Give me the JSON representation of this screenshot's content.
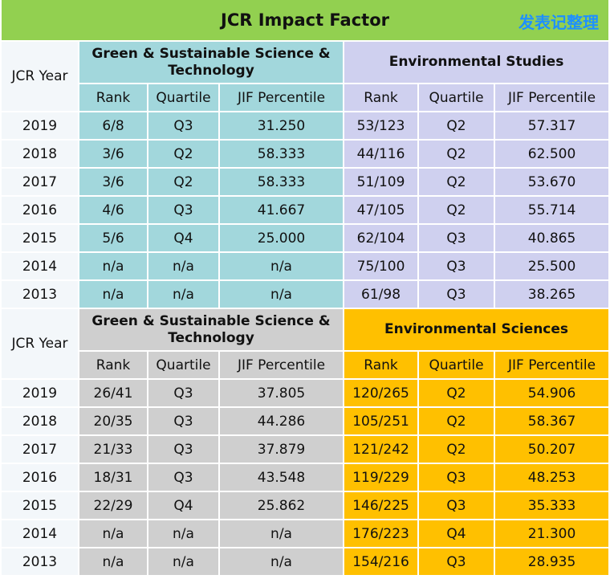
{
  "title": "JCR Impact Factor",
  "watermark": "发表记整理",
  "colors": {
    "title_bg": "#92d050",
    "teal": "#a2d7dc",
    "lavender": "#cfd0ef",
    "grey": "#cfcfcf",
    "gold": "#ffc000",
    "watermark": "#1e90ff"
  },
  "year_label": "JCR Year",
  "sub_headers": [
    "Rank",
    "Quartile",
    "JIF Percentile"
  ],
  "blocks": [
    {
      "left": {
        "name": "Green & Sustainable Science & Technology",
        "color": "teal"
      },
      "right": {
        "name": "Environmental Studies",
        "color": "lav"
      },
      "rows": [
        [
          "2019",
          "6/8",
          "Q3",
          "31.250",
          "53/123",
          "Q2",
          "57.317"
        ],
        [
          "2018",
          "3/6",
          "Q2",
          "58.333",
          "44/116",
          "Q2",
          "62.500"
        ],
        [
          "2017",
          "3/6",
          "Q2",
          "58.333",
          "51/109",
          "Q2",
          "53.670"
        ],
        [
          "2016",
          "4/6",
          "Q3",
          "41.667",
          "47/105",
          "Q2",
          "55.714"
        ],
        [
          "2015",
          "5/6",
          "Q4",
          "25.000",
          "62/104",
          "Q3",
          "40.865"
        ],
        [
          "2014",
          "n/a",
          "n/a",
          "n/a",
          "75/100",
          "Q3",
          "25.500"
        ],
        [
          "2013",
          "n/a",
          "n/a",
          "n/a",
          "61/98",
          "Q3",
          "38.265"
        ]
      ]
    },
    {
      "left": {
        "name": "Green & Sustainable Science & Technology",
        "color": "grey"
      },
      "right": {
        "name": "Environmental Sciences",
        "color": "gold"
      },
      "rows": [
        [
          "2019",
          "26/41",
          "Q3",
          "37.805",
          "120/265",
          "Q2",
          "54.906"
        ],
        [
          "2018",
          "20/35",
          "Q3",
          "44.286",
          "105/251",
          "Q2",
          "58.367"
        ],
        [
          "2017",
          "21/33",
          "Q3",
          "37.879",
          "121/242",
          "Q2",
          "50.207"
        ],
        [
          "2016",
          "18/31",
          "Q3",
          "43.548",
          "119/229",
          "Q3",
          "48.253"
        ],
        [
          "2015",
          "22/29",
          "Q4",
          "25.862",
          "146/225",
          "Q3",
          "35.333"
        ],
        [
          "2014",
          "n/a",
          "n/a",
          "n/a",
          "176/223",
          "Q4",
          "21.300"
        ],
        [
          "2013",
          "n/a",
          "n/a",
          "n/a",
          "154/216",
          "Q3",
          "28.935"
        ]
      ]
    }
  ]
}
